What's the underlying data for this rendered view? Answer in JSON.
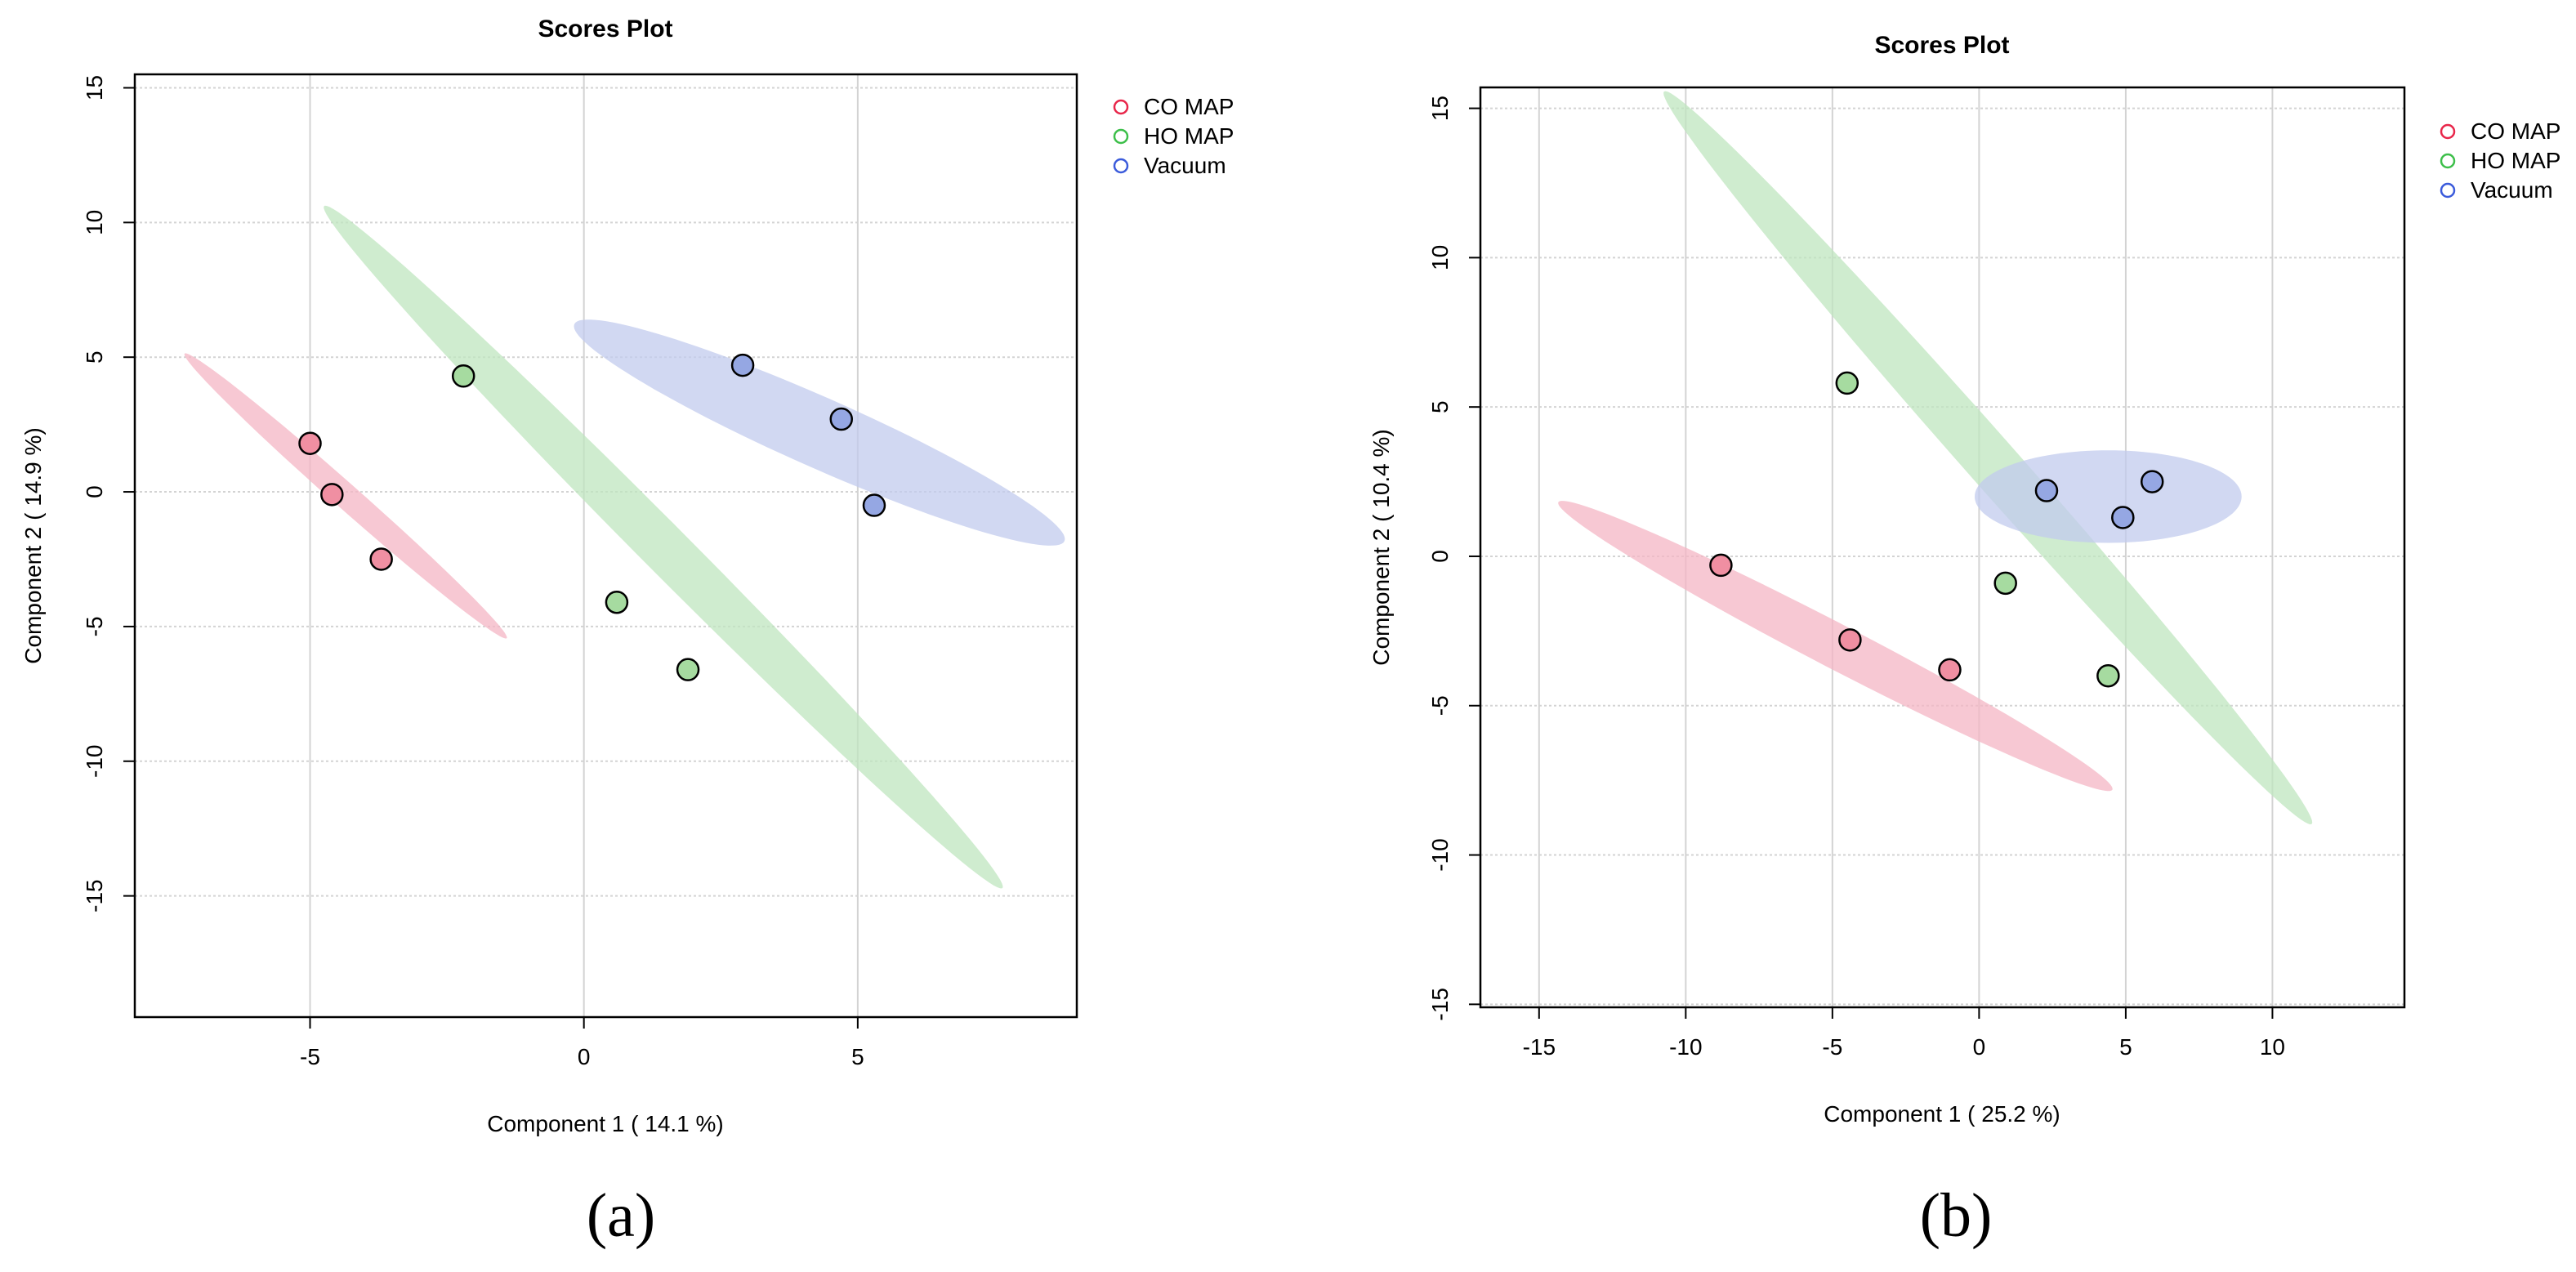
{
  "chart_data": [
    {
      "type": "scatter",
      "panel": "(a)",
      "title": "Scores Plot",
      "xlabel": "Component 1 ( 14.1 %)",
      "ylabel": "Component 2 ( 14.9 %)",
      "xlim": [
        -8.2,
        9.0
      ],
      "ylim": [
        -19.5,
        15.5
      ],
      "xticks": [
        -5,
        0,
        5
      ],
      "yticks": [
        -15,
        -10,
        -5,
        0,
        5,
        10,
        15
      ],
      "grid": true,
      "legend_position": "top-right outside",
      "series": [
        {
          "name": "CO MAP",
          "color": "#e8264a",
          "fill": "#f08fa2",
          "ellipse_color": "#f4b6c4",
          "points": [
            [
              -5.0,
              1.8
            ],
            [
              -4.6,
              -0.1
            ],
            [
              -3.7,
              -2.5
            ]
          ],
          "ellipse": {
            "center": [
              -4.35,
              -0.15
            ],
            "semi_major": 6.05,
            "semi_minor": 0.3,
            "angle_deg": -61
          }
        },
        {
          "name": "HO MAP",
          "color": "#3dbf4a",
          "fill": "#a6dba0",
          "ellipse_color": "#bfe6bf",
          "points": [
            [
              -2.2,
              4.3
            ],
            [
              0.6,
              -4.1
            ],
            [
              1.9,
              -6.6
            ]
          ],
          "ellipse": {
            "center": [
              1.45,
              -2.05
            ],
            "semi_major": 14.1,
            "semi_minor": 0.55,
            "angle_deg": -64
          }
        },
        {
          "name": "Vacuum",
          "color": "#3b5bdb",
          "fill": "#95a7e3",
          "ellipse_color": "#c2cbee",
          "points": [
            [
              2.9,
              4.7
            ],
            [
              4.7,
              2.7
            ],
            [
              5.3,
              -0.5
            ]
          ],
          "ellipse": {
            "center": [
              4.3,
              2.2
            ],
            "semi_major": 6.05,
            "semi_minor": 1.05,
            "angle_deg": -43
          }
        }
      ]
    },
    {
      "type": "scatter",
      "panel": "(b)",
      "title": "Scores Plot",
      "xlabel": "Component 1 ( 25.2 %)",
      "ylabel": "Component 2 ( 10.4 %)",
      "xlim": [
        -17.0,
        14.5
      ],
      "ylim": [
        -15.1,
        15.7
      ],
      "xticks": [
        -15,
        -10,
        -5,
        0,
        5,
        10
      ],
      "yticks": [
        -15,
        -10,
        -5,
        0,
        5,
        10,
        15
      ],
      "grid": true,
      "legend_position": "top-right outside",
      "series": [
        {
          "name": "CO MAP",
          "color": "#e8264a",
          "fill": "#f08fa2",
          "ellipse_color": "#f4b6c4",
          "points": [
            [
              -8.8,
              -0.3
            ],
            [
              -4.4,
              -2.8
            ],
            [
              -1.0,
              -3.8
            ]
          ],
          "ellipse": {
            "center": [
              -4.9,
              -3.0
            ],
            "semi_major": 10.6,
            "semi_minor": 0.75,
            "angle_deg": -27
          }
        },
        {
          "name": "HO MAP",
          "color": "#3dbf4a",
          "fill": "#a6dba0",
          "ellipse_color": "#bfe6bf",
          "points": [
            [
              -4.5,
              5.8
            ],
            [
              0.9,
              -0.9
            ],
            [
              4.4,
              -4.0
            ]
          ],
          "ellipse": {
            "center": [
              0.3,
              3.3
            ],
            "semi_major": 16.5,
            "semi_minor": 0.85,
            "angle_deg": -48
          }
        },
        {
          "name": "Vacuum",
          "color": "#3b5bdb",
          "fill": "#95a7e3",
          "ellipse_color": "#c2cbee",
          "points": [
            [
              2.3,
              2.2
            ],
            [
              5.9,
              2.5
            ],
            [
              4.9,
              1.3
            ]
          ],
          "ellipse": {
            "center": [
              4.4,
              2.0
            ],
            "semi_major": 4.55,
            "semi_minor": 1.55,
            "angle_deg": 0
          }
        }
      ]
    }
  ],
  "panel_labels": [
    "(a)",
    "(b)"
  ]
}
